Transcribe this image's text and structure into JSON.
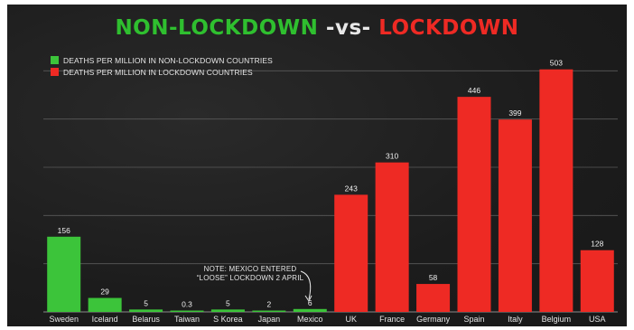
{
  "title": {
    "part1": "NON-LOCKDOWN",
    "part2": "-vs-",
    "part3": "LOCKDOWN"
  },
  "legend": [
    {
      "label": "DEATHS PER MILLION IN NON-LOCKDOWN COUNTRIES",
      "color": "#3cc43a"
    },
    {
      "label": "DEATHS PER MILLION IN LOCKDOWN COUNTRIES",
      "color": "#ee2a24"
    }
  ],
  "annotation": {
    "line1": "NOTE: MEXICO ENTERED",
    "line2": "“LOOSE” LOCKDOWN 2 APRIL"
  },
  "chart_data": {
    "type": "bar",
    "title": "NON-LOCKDOWN -vs- LOCKDOWN",
    "categories": [
      "Sweden",
      "Iceland",
      "Belarus",
      "Taiwan",
      "S Korea",
      "Japan",
      "Mexico",
      "UK",
      "France",
      "Germany",
      "Spain",
      "Italy",
      "Belgium",
      "USA"
    ],
    "values": [
      156,
      29,
      5,
      0.3,
      5,
      2,
      6,
      243,
      310,
      58,
      446,
      399,
      503,
      128
    ],
    "value_labels": [
      "156",
      "29",
      "5",
      "0.3",
      "5",
      "2",
      "6",
      "243",
      "310",
      "58",
      "446",
      "399",
      "503",
      "128"
    ],
    "groups": [
      "non-lockdown",
      "non-lockdown",
      "non-lockdown",
      "non-lockdown",
      "non-lockdown",
      "non-lockdown",
      "non-lockdown",
      "lockdown",
      "lockdown",
      "lockdown",
      "lockdown",
      "lockdown",
      "lockdown",
      "lockdown"
    ],
    "group_colors": {
      "non-lockdown": "#3cc43a",
      "lockdown": "#ee2a24"
    },
    "ylim": [
      0,
      540
    ],
    "grid": true,
    "legend_position": "top-left",
    "xlabel": "",
    "ylabel": ""
  }
}
